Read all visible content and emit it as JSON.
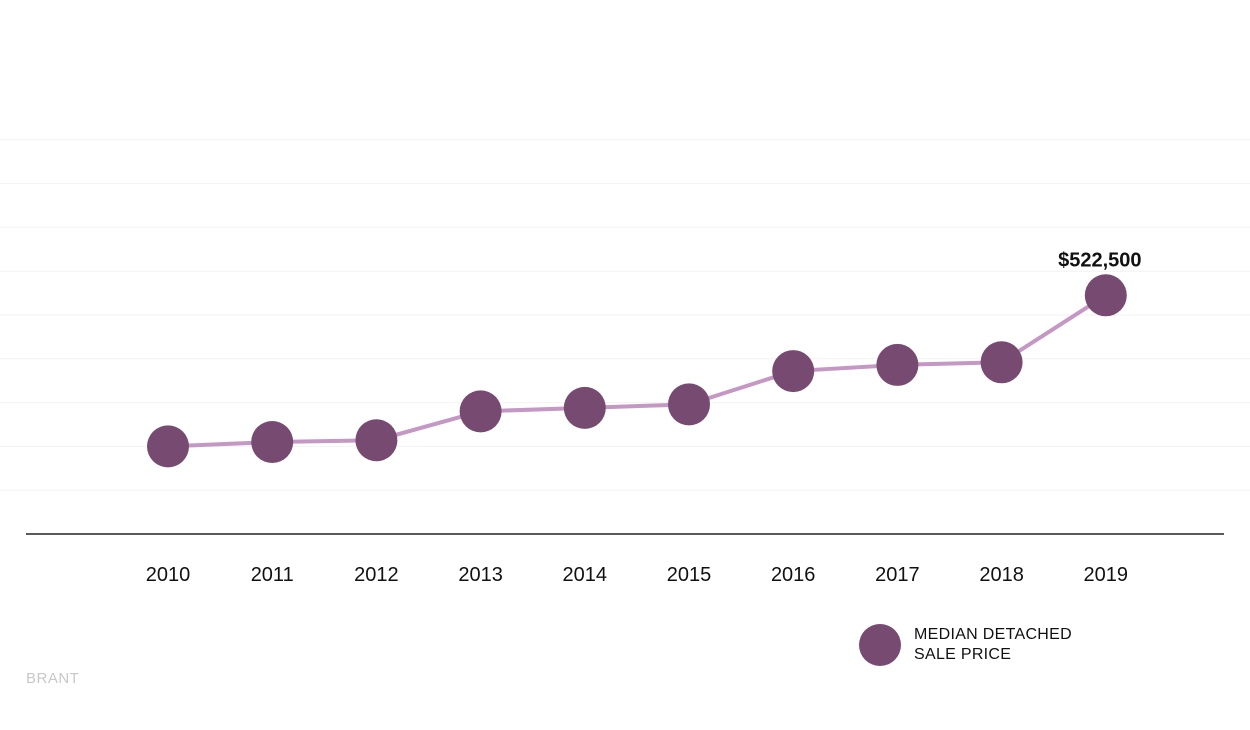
{
  "chart_data": {
    "type": "line",
    "categories": [
      "2010",
      "2011",
      "2012",
      "2013",
      "2014",
      "2015",
      "2016",
      "2017",
      "2018",
      "2019"
    ],
    "series": [
      {
        "name": "MEDIAN DETACHED SALE PRICE",
        "values": [
          350000,
          355000,
          357000,
          390000,
          394000,
          398000,
          436000,
          443000,
          446000,
          522500
        ],
        "color": "#774A72",
        "line_color": "#C497C5"
      }
    ],
    "annotations": [
      {
        "category": "2019",
        "value": 522500,
        "text": "$522,500"
      }
    ],
    "ylim": [
      250000,
      750000
    ],
    "grid": "horizontal",
    "legend_position": "bottom-right"
  },
  "legend": {
    "label_line1": "MEDIAN DETACHED",
    "label_line2": "SALE PRICE"
  },
  "footer": {
    "brand": "BRANT"
  }
}
